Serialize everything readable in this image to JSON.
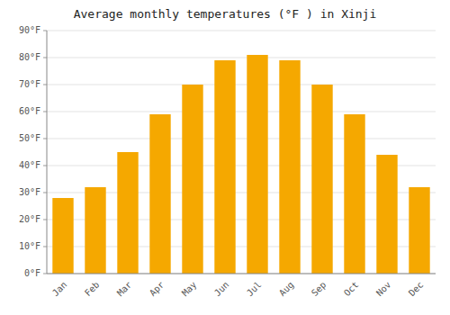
{
  "chart_data": {
    "type": "bar",
    "title": "Average monthly temperatures (°F ) in Xinji",
    "categories": [
      "Jan",
      "Feb",
      "Mar",
      "Apr",
      "May",
      "Jun",
      "Jul",
      "Aug",
      "Sep",
      "Oct",
      "Nov",
      "Dec"
    ],
    "values": [
      28,
      32,
      45,
      59,
      70,
      79,
      81,
      79,
      70,
      59,
      44,
      32
    ],
    "color": "#F5A800",
    "ylim": [
      0,
      90
    ],
    "yticks": [
      {
        "value": 0,
        "label": "0°F"
      },
      {
        "value": 10,
        "label": "10°F"
      },
      {
        "value": 20,
        "label": "20°F"
      },
      {
        "value": 30,
        "label": "30°F"
      },
      {
        "value": 40,
        "label": "40°F"
      },
      {
        "value": 50,
        "label": "50°F"
      },
      {
        "value": 60,
        "label": "60°F"
      },
      {
        "value": 70,
        "label": "70°F"
      },
      {
        "value": 80,
        "label": "80°F"
      },
      {
        "value": 90,
        "label": "90°F"
      }
    ],
    "grid": true
  }
}
